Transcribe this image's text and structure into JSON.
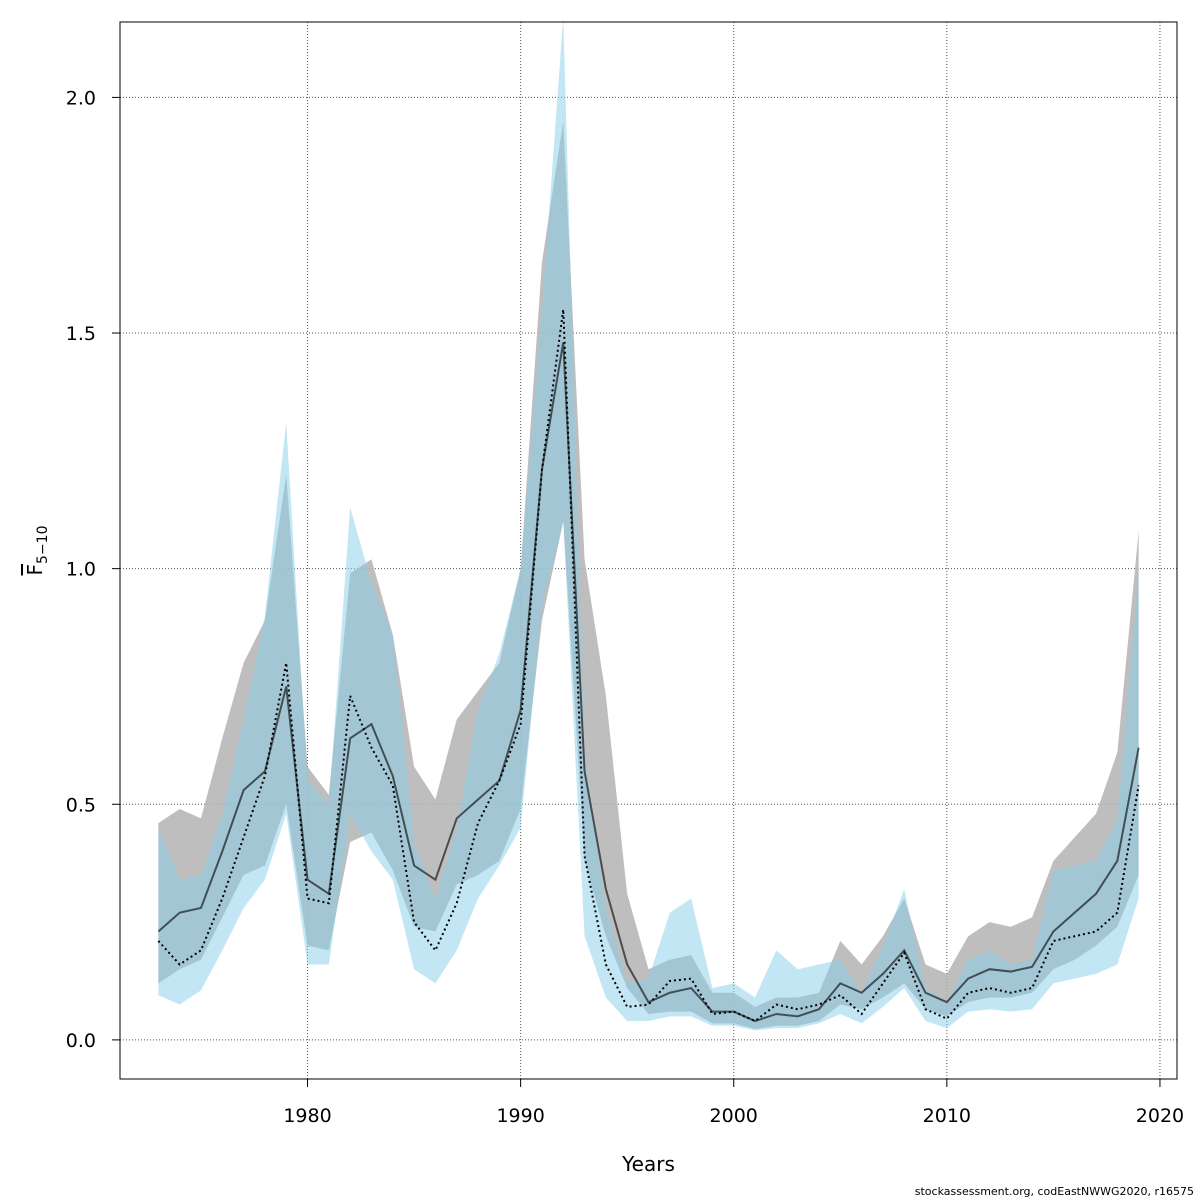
{
  "chart_data": {
    "type": "line",
    "xlabel": "Years",
    "ylabel": "F",
    "ylabel_subscript": "5−10",
    "xlim": [
      1971.2,
      2020.8
    ],
    "ylim": [
      -0.083,
      2.16
    ],
    "x_ticks": [
      1980,
      1990,
      2000,
      2010,
      2020
    ],
    "y_ticks": [
      0.0,
      0.5,
      1.0,
      1.5,
      2.0
    ],
    "y_tick_labels": [
      "0.0",
      "0.5",
      "1.0",
      "1.5",
      "2.0"
    ],
    "grid": true,
    "colors": {
      "gray_band": "#b3b3b3",
      "blue_band": "#87ceeb",
      "line": "#000000"
    },
    "years": [
      1973,
      1974,
      1975,
      1976,
      1977,
      1978,
      1979,
      1980,
      1981,
      1982,
      1983,
      1984,
      1985,
      1986,
      1987,
      1988,
      1989,
      1990,
      1991,
      1992,
      1993,
      1994,
      1995,
      1996,
      1997,
      1998,
      1999,
      2000,
      2001,
      2002,
      2003,
      2004,
      2005,
      2006,
      2007,
      2008,
      2009,
      2010,
      2011,
      2012,
      2013,
      2014,
      2015,
      2016,
      2017,
      2018,
      2019
    ],
    "series": [
      {
        "style": "solid",
        "values": [
          0.23,
          0.27,
          0.28,
          0.4,
          0.53,
          0.57,
          0.75,
          0.34,
          0.31,
          0.64,
          0.67,
          0.56,
          0.37,
          0.34,
          0.47,
          0.51,
          0.55,
          0.7,
          1.21,
          1.48,
          0.57,
          0.32,
          0.16,
          0.08,
          0.1,
          0.11,
          0.06,
          0.06,
          0.04,
          0.055,
          0.05,
          0.065,
          0.12,
          0.1,
          0.14,
          0.19,
          0.1,
          0.08,
          0.13,
          0.15,
          0.145,
          0.155,
          0.23,
          0.27,
          0.31,
          0.38,
          0.62
        ],
        "lower": [
          0.12,
          0.15,
          0.17,
          0.26,
          0.35,
          0.37,
          0.5,
          0.2,
          0.19,
          0.42,
          0.44,
          0.36,
          0.24,
          0.23,
          0.33,
          0.35,
          0.38,
          0.49,
          0.89,
          1.1,
          0.38,
          0.22,
          0.11,
          0.055,
          0.06,
          0.06,
          0.035,
          0.035,
          0.023,
          0.03,
          0.03,
          0.04,
          0.075,
          0.065,
          0.09,
          0.12,
          0.065,
          0.05,
          0.08,
          0.09,
          0.09,
          0.1,
          0.15,
          0.17,
          0.2,
          0.24,
          0.35
        ],
        "upper": [
          0.46,
          0.49,
          0.47,
          0.64,
          0.8,
          0.89,
          1.2,
          0.58,
          0.52,
          0.99,
          1.02,
          0.86,
          0.58,
          0.51,
          0.68,
          0.74,
          0.8,
          1.0,
          1.65,
          1.95,
          1.02,
          0.73,
          0.31,
          0.15,
          0.17,
          0.18,
          0.1,
          0.1,
          0.07,
          0.09,
          0.09,
          0.1,
          0.21,
          0.16,
          0.22,
          0.3,
          0.16,
          0.14,
          0.22,
          0.25,
          0.24,
          0.26,
          0.38,
          0.43,
          0.48,
          0.61,
          1.08
        ]
      },
      {
        "style": "dotted",
        "values": [
          0.21,
          0.16,
          0.19,
          0.3,
          0.43,
          0.56,
          0.8,
          0.3,
          0.29,
          0.73,
          0.62,
          0.54,
          0.25,
          0.19,
          0.29,
          0.46,
          0.55,
          0.67,
          1.21,
          1.55,
          0.39,
          0.16,
          0.07,
          0.075,
          0.125,
          0.13,
          0.055,
          0.06,
          0.04,
          0.075,
          0.065,
          0.075,
          0.095,
          0.055,
          0.12,
          0.185,
          0.065,
          0.045,
          0.1,
          0.11,
          0.1,
          0.11,
          0.21,
          0.22,
          0.23,
          0.27,
          0.54
        ],
        "lower": [
          0.095,
          0.075,
          0.105,
          0.19,
          0.28,
          0.34,
          0.48,
          0.16,
          0.16,
          0.48,
          0.4,
          0.34,
          0.15,
          0.12,
          0.19,
          0.3,
          0.37,
          0.45,
          0.92,
          1.1,
          0.22,
          0.09,
          0.04,
          0.04,
          0.05,
          0.05,
          0.03,
          0.03,
          0.02,
          0.025,
          0.025,
          0.035,
          0.055,
          0.035,
          0.07,
          0.11,
          0.04,
          0.025,
          0.06,
          0.065,
          0.06,
          0.065,
          0.12,
          0.13,
          0.14,
          0.16,
          0.3
        ],
        "upper": [
          0.45,
          0.34,
          0.35,
          0.48,
          0.68,
          0.9,
          1.31,
          0.55,
          0.5,
          1.13,
          0.97,
          0.86,
          0.42,
          0.3,
          0.45,
          0.7,
          0.82,
          1.0,
          1.55,
          2.17,
          0.6,
          0.28,
          0.12,
          0.13,
          0.27,
          0.3,
          0.11,
          0.12,
          0.09,
          0.19,
          0.15,
          0.16,
          0.17,
          0.1,
          0.2,
          0.32,
          0.11,
          0.08,
          0.17,
          0.19,
          0.16,
          0.17,
          0.36,
          0.37,
          0.38,
          0.47,
          0.99
        ]
      }
    ]
  },
  "footer": {
    "credit": "stockassessment.org, codEastNWWG2020, r16575"
  }
}
